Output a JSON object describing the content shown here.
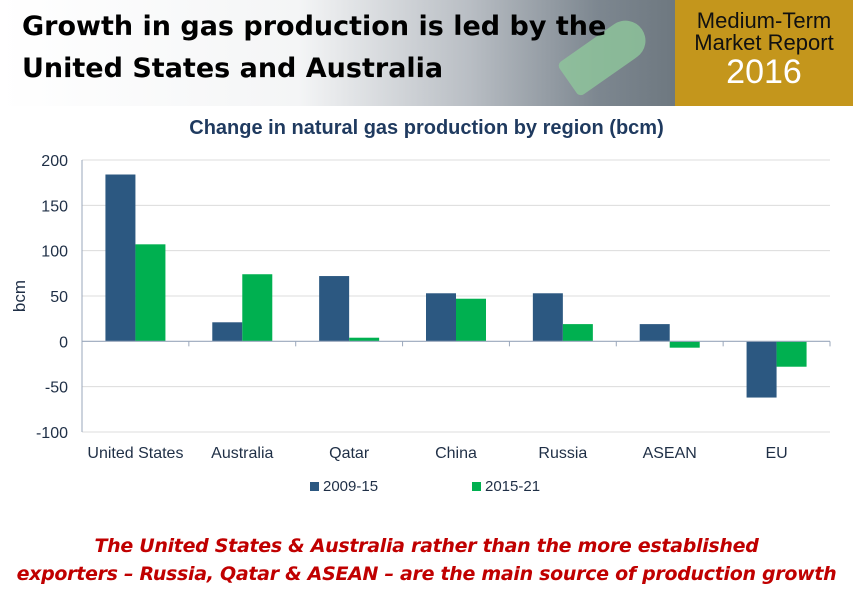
{
  "header": {
    "title_line1": "Growth in gas production is led by the",
    "title_line2": "United States and Australia",
    "badge_line1": "Medium-Term",
    "badge_line2": "Market Report",
    "badge_year": "2016"
  },
  "chart_data": {
    "type": "bar",
    "title": "Change in natural gas production by region (bcm)",
    "xlabel": "",
    "ylabel": "bcm",
    "ylim": [
      -100,
      200
    ],
    "yticks": [
      -100,
      -50,
      0,
      50,
      100,
      150,
      200
    ],
    "categories": [
      "United States",
      "Australia",
      "Qatar",
      "China",
      "Russia",
      "ASEAN",
      "EU"
    ],
    "series": [
      {
        "name": "2009-15",
        "color": "#2c5881",
        "values": [
          184,
          21,
          72,
          53,
          53,
          19,
          -62
        ]
      },
      {
        "name": "2015-21",
        "color": "#00b050",
        "values": [
          107,
          74,
          4,
          47,
          19,
          -7,
          -28
        ]
      }
    ],
    "grid": true,
    "legend": "bottom"
  },
  "caption": {
    "line1": "The United States & Australia rather than the more established",
    "line2": "exporters – Russia, Qatar & ASEAN – are the main source of production growth"
  }
}
